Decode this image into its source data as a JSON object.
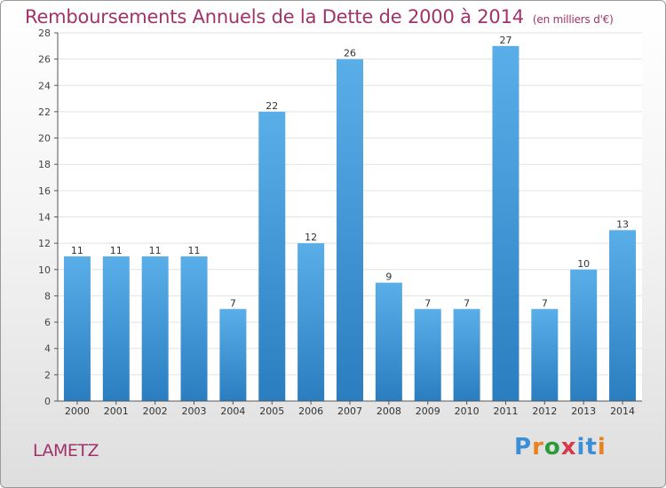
{
  "header": {
    "title": "Remboursements Annuels de la Dette de 2000 à 2014",
    "unit": "(en milliers d'€)"
  },
  "footer": {
    "commune": "LAMETZ",
    "logo_text": "Proxiti"
  },
  "colors": {
    "title": "#a0336a",
    "bar_light": "#5aaee8",
    "bar_dark": "#2a7ec0",
    "grid": "#e2e2e2"
  },
  "chart_data": {
    "type": "bar",
    "title": "Remboursements Annuels de la Dette de 2000 à 2014",
    "subtitle": "(en milliers d'€)",
    "xlabel": "",
    "ylabel": "",
    "categories": [
      "2000",
      "2001",
      "2002",
      "2003",
      "2004",
      "2005",
      "2006",
      "2007",
      "2008",
      "2009",
      "2010",
      "2011",
      "2012",
      "2013",
      "2014"
    ],
    "values": [
      11,
      11,
      11,
      11,
      7,
      22,
      12,
      26,
      9,
      7,
      7,
      27,
      7,
      10,
      13
    ],
    "ylim": [
      0,
      28
    ],
    "yticks": [
      0,
      2,
      4,
      6,
      8,
      10,
      12,
      14,
      16,
      18,
      20,
      22,
      24,
      26,
      28
    ],
    "grid": true,
    "data_labels": true
  }
}
